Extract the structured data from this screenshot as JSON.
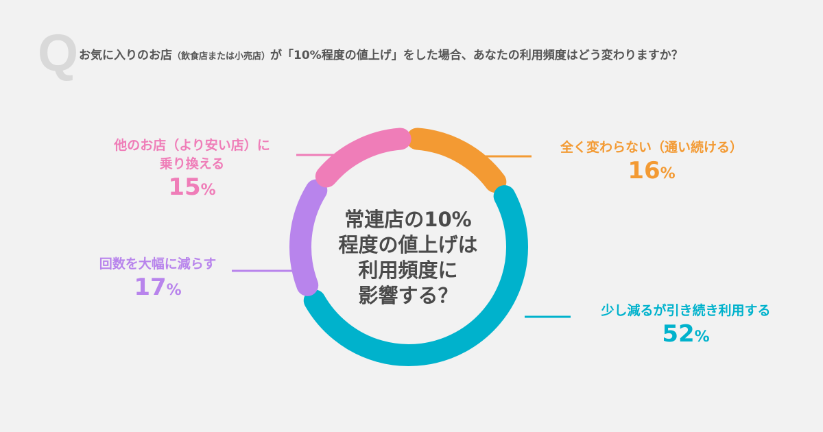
{
  "question": {
    "mark": "Q",
    "text_before": "お気に入りのお店",
    "text_small": "（飲食店または小売店）",
    "text_after": "が「10%程度の値上げ」をした場合、あなたの利用頻度はどう変わりますか？"
  },
  "chart_data": {
    "type": "pie",
    "donut": true,
    "center_text": [
      "常連店の10%",
      "程度の値上げは",
      "利用頻度に",
      "影響する？"
    ],
    "unit": "%",
    "slices": [
      {
        "label": "全く変わらない（通い続ける）",
        "value": 16,
        "color": "#F39A33"
      },
      {
        "label": "少し減るが引き続き利用する",
        "value": 52,
        "color": "#00B2CC"
      },
      {
        "label": "回数を大幅に減らす",
        "value": 17,
        "color": "#B884EC"
      },
      {
        "label": "他のお店（より安い店）に乗り換える",
        "label_lines": [
          "他のお店（より安い店）に",
          "乗り換える"
        ],
        "value": 15,
        "color": "#EF7DB8"
      }
    ]
  }
}
